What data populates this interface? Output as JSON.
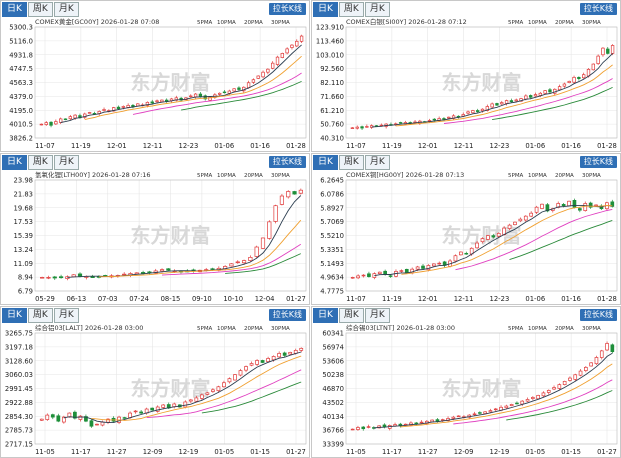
{
  "colors": {
    "up": "#e03a3a",
    "down": "#1e8f3a",
    "ma5": "#2c3e50",
    "ma10": "#f0a030",
    "ma20": "#e040c0",
    "ma30": "#2a8a3a",
    "grid": "#e6e6e6",
    "tab_active": "#2f6fb5"
  },
  "panels": [
    {
      "tabs": [
        "日K",
        "周K",
        "月K"
      ],
      "active_tab": 0,
      "control": "拉长K线",
      "header": {
        "symbol": "COMEX黄金[GC00Y]",
        "date": "2026-01-28",
        "time": "07:08"
      },
      "legend": [
        "5PMA",
        "10PMA",
        "20PMA",
        "30PMA"
      ],
      "watermark": "东方财富",
      "chart_data": {
        "type": "candlestick",
        "ylim": [
          3826.2,
          5300.3
        ],
        "yticks": [
          "5300.3",
          "5116.0",
          "4931.8",
          "4747.5",
          "4563.3",
          "4379.0",
          "4195.0",
          "4010.5",
          "3826.2"
        ],
        "xticks": [
          "11-07",
          "11-19",
          "12-01",
          "12-11",
          "12-23",
          "01-06",
          "01-16",
          "01-28"
        ],
        "closes": [
          4010,
          4030,
          3995,
          4045,
          4080,
          4070,
          4110,
          4130,
          4095,
          4145,
          4165,
          4150,
          4180,
          4205,
          4190,
          4230,
          4215,
          4245,
          4260,
          4240,
          4280,
          4265,
          4300,
          4290,
          4320,
          4330,
          4310,
          4345,
          4360,
          4330,
          4360,
          4385,
          4410,
          4375,
          4345,
          4370,
          4400,
          4420,
          4430,
          4450,
          4480,
          4470,
          4500,
          4560,
          4600,
          4650,
          4700,
          4740,
          4820,
          4900,
          4950,
          5010,
          5060,
          5110,
          5180
        ]
      }
    },
    {
      "tabs": [
        "日K",
        "周K",
        "月K"
      ],
      "active_tab": 0,
      "control": "拉长K线",
      "header": {
        "symbol": "COMEX白银[SI00Y]",
        "date": "2026-01-28",
        "time": "07:12"
      },
      "legend": [
        "5PMA",
        "10PMA",
        "20PMA",
        "30PMA"
      ],
      "watermark": "东方财富",
      "chart_data": {
        "type": "candlestick",
        "ylim": [
          40.31,
          123.91
        ],
        "yticks": [
          "123.910",
          "113.460",
          "103.010",
          "92.560",
          "82.110",
          "71.660",
          "61.210",
          "50.760",
          "40.310"
        ],
        "xticks": [
          "11-07",
          "11-19",
          "12-01",
          "12-11",
          "12-23",
          "01-06",
          "01-16",
          "01-28"
        ],
        "closes": [
          48,
          48.5,
          47.8,
          49,
          49.6,
          49.2,
          50,
          50.8,
          50.2,
          51,
          51.5,
          52,
          51.6,
          52.4,
          53,
          52.6,
          53.5,
          54,
          55,
          54.6,
          56,
          57,
          56.5,
          58,
          60,
          61,
          60.2,
          62,
          64,
          66,
          65,
          67,
          68.5,
          67.6,
          69,
          70,
          72,
          71,
          73,
          74,
          76,
          75,
          77,
          79,
          81,
          83,
          86,
          85,
          88,
          92,
          96,
          102,
          108,
          104,
          110
        ]
      }
    },
    {
      "tabs": [
        "日K",
        "周K",
        "月K"
      ],
      "active_tab": 0,
      "control": "拉长K线",
      "header": {
        "symbol": "氢氧化锂[LTH00Y]",
        "date": "2026-01-28",
        "time": "07:16"
      },
      "legend": [
        "5PMA",
        "10PMA",
        "20PMA",
        "30PMA"
      ],
      "watermark": "东方财富",
      "chart_data": {
        "type": "candlestick",
        "ylim": [
          6.79,
          23.98
        ],
        "yticks": [
          "23.98",
          "21.83",
          "19.68",
          "17.53",
          "15.39",
          "13.24",
          "11.09",
          "8.94",
          "6.79"
        ],
        "xticks": [
          "05-29",
          "06-13",
          "07-03",
          "07-24",
          "08-15",
          "09-10",
          "10-10",
          "12-04",
          "01-27"
        ],
        "closes": [
          8.9,
          8.9,
          8.8,
          8.85,
          9.0,
          9.3,
          9.1,
          9.05,
          8.95,
          9.0,
          9.1,
          9.15,
          9.2,
          9.4,
          9.5,
          9.6,
          9.55,
          9.7,
          9.9,
          10.1,
          10.0,
          9.9,
          9.8,
          9.85,
          9.9,
          10.0,
          10.1,
          10.2,
          10.3,
          10.6,
          11.0,
          11.3,
          11.5,
          12.0,
          13.6,
          15.0,
          17.5,
          20.0,
          21.5,
          22.2,
          21.8,
          22.4
        ]
      }
    },
    {
      "tabs": [
        "日K",
        "周K",
        "月K"
      ],
      "active_tab": 0,
      "control": "拉长K线",
      "header": {
        "symbol": "COMEX铜[HG00Y]",
        "date": "2026-01-28",
        "time": "07:13"
      },
      "legend": [
        "5PMA",
        "10PMA",
        "20PMA",
        "30PMA"
      ],
      "watermark": "东方财富",
      "chart_data": {
        "type": "candlestick",
        "ylim": [
          4.7775,
          6.2645
        ],
        "yticks": [
          "6.2645",
          "6.0786",
          "5.8927",
          "5.7069",
          "5.5210",
          "5.3351",
          "5.1493",
          "4.9634",
          "4.7775"
        ],
        "xticks": [
          "11-07",
          "11-19",
          "12-01",
          "12-11",
          "12-23",
          "01-06",
          "01-16",
          "01-28"
        ],
        "closes": [
          4.96,
          4.98,
          4.99,
          4.97,
          5.01,
          5.03,
          5.0,
          4.98,
          5.04,
          5.05,
          5.03,
          5.07,
          5.1,
          5.08,
          5.12,
          5.14,
          5.15,
          5.12,
          5.18,
          5.25,
          5.3,
          5.28,
          5.35,
          5.42,
          5.48,
          5.52,
          5.5,
          5.55,
          5.62,
          5.66,
          5.7,
          5.74,
          5.78,
          5.82,
          5.9,
          5.94,
          5.85,
          5.88,
          5.95,
          5.92,
          5.98,
          5.9,
          5.86,
          5.95,
          5.9,
          5.93,
          5.88,
          5.96,
          5.91
        ]
      }
    },
    {
      "tabs": [
        "日K",
        "周K",
        "月K"
      ],
      "active_tab": 0,
      "control": "拉长K线",
      "header": {
        "symbol": "综合铝03[LALT]",
        "date": "2026-01-28",
        "time": "03:00"
      },
      "legend": [
        "5PMA",
        "10PMA",
        "20PMA",
        "30PMA"
      ],
      "watermark": "东方财富",
      "chart_data": {
        "type": "candlestick",
        "ylim": [
          2717.15,
          3265.75
        ],
        "yticks": [
          "3265.75",
          "3197.18",
          "3128.60",
          "3060.03",
          "2991.45",
          "2922.88",
          "2854.30",
          "2785.73",
          "2717.15"
        ],
        "xticks": [
          "11-05",
          "11-17",
          "11-27",
          "12-09",
          "12-19",
          "01-05",
          "01-15",
          "01-27"
        ],
        "closes": [
          2840,
          2860,
          2850,
          2830,
          2850,
          2870,
          2845,
          2855,
          2830,
          2805,
          2815,
          2825,
          2840,
          2830,
          2850,
          2845,
          2870,
          2880,
          2870,
          2890,
          2885,
          2900,
          2910,
          2895,
          2915,
          2900,
          2925,
          2935,
          2945,
          2960,
          2970,
          2985,
          3000,
          3020,
          3040,
          3060,
          3080,
          3100,
          3115,
          3130,
          3120,
          3140,
          3150,
          3165,
          3155,
          3170,
          3180,
          3190
        ]
      }
    },
    {
      "tabs": [
        "日K",
        "周K",
        "月K"
      ],
      "active_tab": 0,
      "control": "拉长K线",
      "header": {
        "symbol": "综合锡03[LTNT]",
        "date": "2026-01-28",
        "time": "03:00"
      },
      "legend": [
        "5PMA",
        "10PMA",
        "20PMA",
        "30PMA"
      ],
      "watermark": "东方财富",
      "chart_data": {
        "type": "candlestick",
        "ylim": [
          33390,
          60341
        ],
        "yticks": [
          "60341",
          "56974",
          "53606",
          "50238",
          "46870",
          "43502",
          "40134",
          "36766",
          "33399"
        ],
        "xticks": [
          "11-05",
          "11-17",
          "11-27",
          "12-09",
          "12-19",
          "01-05",
          "01-15",
          "01-27"
        ],
        "closes": [
          37000,
          37400,
          37100,
          37600,
          37300,
          37800,
          37500,
          37900,
          38100,
          37800,
          38200,
          38500,
          38300,
          38700,
          38900,
          39200,
          38900,
          39300,
          39600,
          39900,
          40200,
          40000,
          40400,
          40700,
          41000,
          41200,
          41500,
          41900,
          42300,
          42600,
          43000,
          43300,
          43800,
          44200,
          44700,
          45200,
          45800,
          46400,
          47100,
          47800,
          48600,
          49400,
          50200,
          51100,
          52000,
          53100,
          54400,
          56000,
          57800,
          55800
        ]
      }
    }
  ]
}
